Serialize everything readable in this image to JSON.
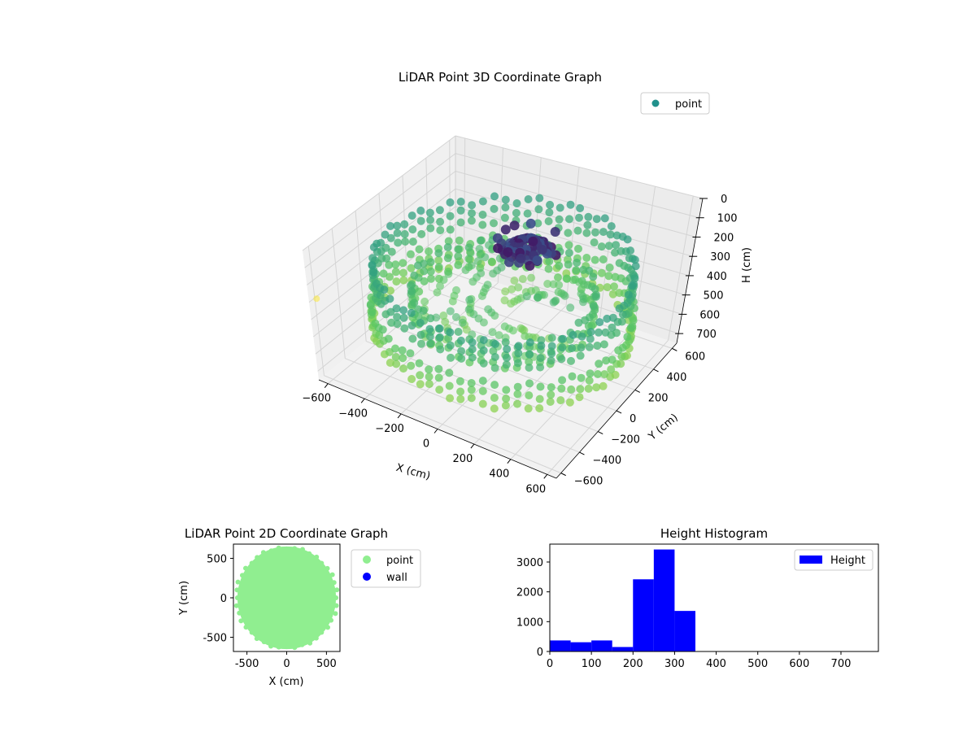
{
  "chart_data": [
    {
      "type": "scatter",
      "title": "LiDAR Point 3D Coordinate Graph",
      "xlabel": "X (cm)",
      "ylabel": "Y (cm)",
      "zlabel": "H (cm)",
      "x_ticks": [
        "−600",
        "−400",
        "−200",
        "0",
        "200",
        "400",
        "600"
      ],
      "y_ticks": [
        "−600",
        "−400",
        "−200",
        "0",
        "200",
        "400",
        "600"
      ],
      "z_ticks": [
        "0",
        "100",
        "200",
        "300",
        "400",
        "500",
        "600",
        "700"
      ],
      "xlim": [
        -650,
        650
      ],
      "ylim": [
        -650,
        650
      ],
      "zlim": [
        0,
        750
      ],
      "z_inverted": true,
      "grid": true,
      "legend": {
        "position": "top-right",
        "entries": [
          {
            "label": "point",
            "color": "#21918c"
          }
        ]
      },
      "colormap": "viridis",
      "point_groups": [
        {
          "name": "outer-top-ring",
          "shape": "ring",
          "radius": 600,
          "height": 250,
          "count": 72
        },
        {
          "name": "outer-bottom-ring",
          "shape": "ring",
          "radius": 620,
          "height": 480,
          "count": 72
        },
        {
          "name": "inner-ring",
          "shape": "ring",
          "radius": 430,
          "height": 380,
          "count": 48
        },
        {
          "name": "central-cluster",
          "shape": "cluster",
          "radius": 150,
          "height": 140,
          "count": 70
        },
        {
          "name": "outlier",
          "shape": "point",
          "x": -640,
          "y": -600,
          "h": 300
        }
      ]
    },
    {
      "type": "scatter",
      "title": "LiDAR Point 2D Coordinate Graph",
      "xlabel": "X (cm)",
      "ylabel": "Y (cm)",
      "xlim": [
        -670,
        670
      ],
      "ylim": [
        -680,
        680
      ],
      "x_ticks": [
        -500,
        0,
        500
      ],
      "y_ticks": [
        -500,
        0,
        500
      ],
      "legend": {
        "position": "right-outside",
        "entries": [
          {
            "label": "point",
            "color": "#90ee90"
          },
          {
            "label": "wall",
            "color": "#0000ff"
          }
        ]
      },
      "point_region": {
        "center": [
          0,
          0
        ],
        "radius": 620
      }
    },
    {
      "type": "bar",
      "title": "Height Histogram",
      "bin_edges": [
        0,
        50,
        100,
        150,
        200,
        250,
        300,
        350
      ],
      "values": [
        370,
        310,
        370,
        150,
        2420,
        3420,
        1360
      ],
      "xlim": [
        0,
        790
      ],
      "ylim": [
        0,
        3600
      ],
      "x_ticks": [
        0,
        100,
        200,
        300,
        400,
        500,
        600,
        700
      ],
      "y_ticks": [
        0,
        1000,
        2000,
        3000
      ],
      "color": "#0000ff",
      "legend": {
        "position": "top-right",
        "entries": [
          {
            "label": "Height",
            "color": "#0000ff"
          }
        ]
      }
    }
  ]
}
